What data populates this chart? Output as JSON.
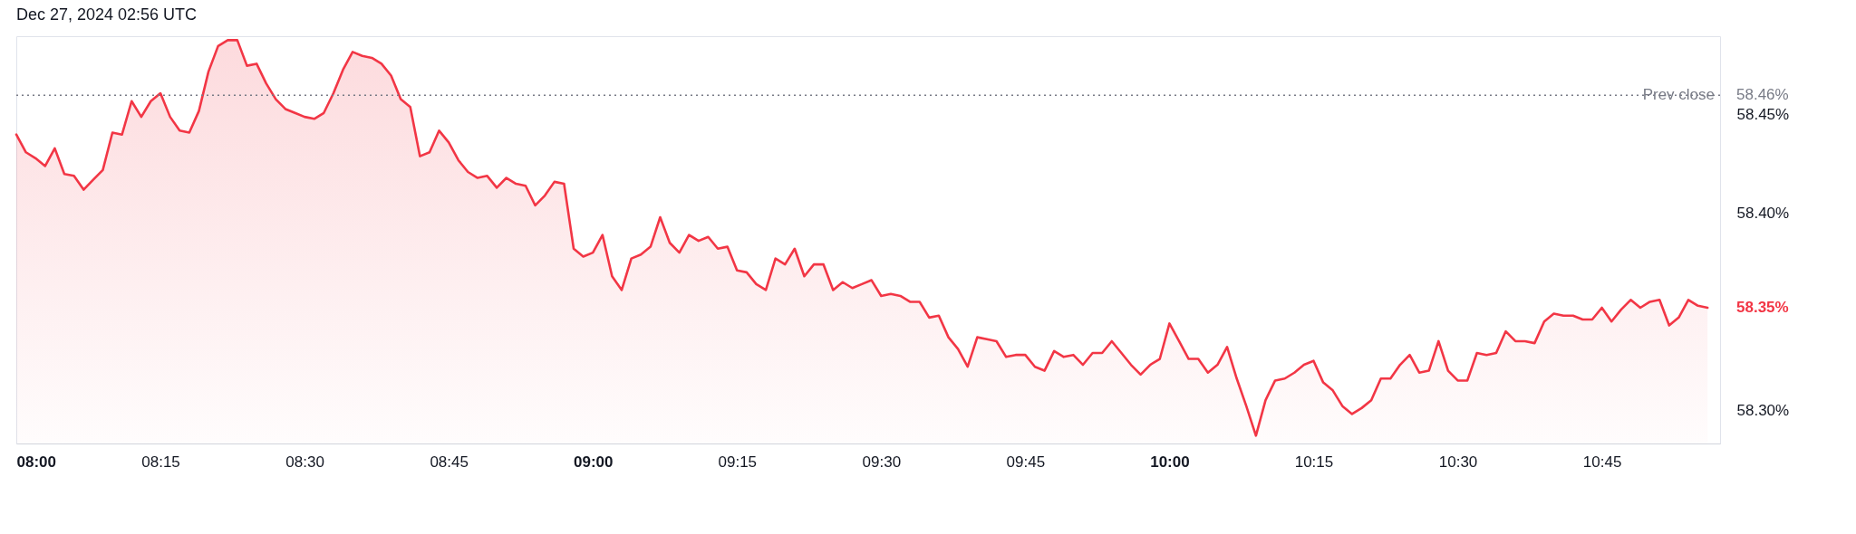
{
  "chart_data": {
    "type": "area",
    "title": "Dec 27, 2024 02:56 UTC",
    "x": [
      8,
      8.0167,
      8.0333,
      8.05,
      8.0667,
      8.0833,
      8.1,
      8.1167,
      8.1333,
      8.15,
      8.1667,
      8.1833,
      8.2,
      8.2167,
      8.2333,
      8.25,
      8.2667,
      8.2833,
      8.3,
      8.3167,
      8.3333,
      8.35,
      8.3667,
      8.3833,
      8.4,
      8.4167,
      8.4333,
      8.45,
      8.4667,
      8.4833,
      8.5,
      8.5167,
      8.5333,
      8.55,
      8.5667,
      8.5833,
      8.6,
      8.6167,
      8.6333,
      8.65,
      8.6667,
      8.6833,
      8.7,
      8.7167,
      8.7333,
      8.75,
      8.7667,
      8.7833,
      8.8,
      8.8167,
      8.8333,
      8.85,
      8.8667,
      8.8833,
      8.9,
      8.9167,
      8.9333,
      8.95,
      8.9667,
      8.9833,
      9,
      9.0167,
      9.0333,
      9.05,
      9.0667,
      9.0833,
      9.1,
      9.1167,
      9.1333,
      9.15,
      9.1667,
      9.1833,
      9.2,
      9.2167,
      9.2333,
      9.25,
      9.2667,
      9.2833,
      9.3,
      9.3167,
      9.3333,
      9.35,
      9.3667,
      9.3833,
      9.4,
      9.4167,
      9.4333,
      9.45,
      9.4667,
      9.4833,
      9.5,
      9.5167,
      9.5333,
      9.55,
      9.5667,
      9.5833,
      9.6,
      9.6167,
      9.6333,
      9.65,
      9.6667,
      9.6833,
      9.7,
      9.7167,
      9.7333,
      9.75,
      9.7667,
      9.7833,
      9.8,
      9.8167,
      9.8333,
      9.85,
      9.8667,
      9.8833,
      9.9,
      9.9167,
      9.9333,
      9.95,
      9.9667,
      9.9833,
      10,
      10.0167,
      10.0333,
      10.05,
      10.0667,
      10.0833,
      10.1,
      10.1167,
      10.1333,
      10.15,
      10.1667,
      10.1833,
      10.2,
      10.2167,
      10.2333,
      10.25,
      10.2667,
      10.2833,
      10.3,
      10.3167,
      10.3333,
      10.35,
      10.3667,
      10.3833,
      10.4,
      10.4167,
      10.4333,
      10.45,
      10.4667,
      10.4833,
      10.5,
      10.5167,
      10.5333,
      10.55,
      10.5667,
      10.5833,
      10.6,
      10.6167,
      10.6333,
      10.65,
      10.6667,
      10.6833,
      10.7,
      10.7167,
      10.7333,
      10.75,
      10.7667,
      10.7833,
      10.8,
      10.8167,
      10.8333,
      10.85,
      10.8667,
      10.8833,
      10.9,
      10.9167,
      10.9333
    ],
    "series": [
      {
        "color": "#f23645",
        "values": [
          58.44,
          58.431,
          58.428,
          58.424,
          58.433,
          58.42,
          58.419,
          58.412,
          58.417,
          58.422,
          58.441,
          58.44,
          58.457,
          58.449,
          58.457,
          58.461,
          58.449,
          58.442,
          58.441,
          58.452,
          58.472,
          58.485,
          58.488,
          58.488,
          58.475,
          58.476,
          58.466,
          58.458,
          58.453,
          58.451,
          58.449,
          58.448,
          58.451,
          58.461,
          58.473,
          58.482,
          58.48,
          58.479,
          58.476,
          58.47,
          58.458,
          58.454,
          58.429,
          58.431,
          58.442,
          58.436,
          58.427,
          58.421,
          58.418,
          58.419,
          58.413,
          58.418,
          58.415,
          58.414,
          58.404,
          58.409,
          58.416,
          58.415,
          58.382,
          58.378,
          58.38,
          58.389,
          58.368,
          58.361,
          58.377,
          58.379,
          58.383,
          58.398,
          58.385,
          58.38,
          58.389,
          58.386,
          58.388,
          58.382,
          58.383,
          58.371,
          58.37,
          58.364,
          58.361,
          58.377,
          58.374,
          58.382,
          58.368,
          58.374,
          58.374,
          58.361,
          58.365,
          58.362,
          58.364,
          58.366,
          58.358,
          58.359,
          58.358,
          58.355,
          58.355,
          58.347,
          58.348,
          58.337,
          58.331,
          58.322,
          58.337,
          58.336,
          58.335,
          58.327,
          58.328,
          58.328,
          58.322,
          58.32,
          58.33,
          58.327,
          58.328,
          58.323,
          58.329,
          58.329,
          58.335,
          58.329,
          58.323,
          58.318,
          58.323,
          58.326,
          58.344,
          58.335,
          58.326,
          58.326,
          58.319,
          58.323,
          58.332,
          58.316,
          58.302,
          58.287,
          58.305,
          58.315,
          58.316,
          58.319,
          58.323,
          58.325,
          58.314,
          58.31,
          58.302,
          58.298,
          58.301,
          58.305,
          58.316,
          58.316,
          58.323,
          58.328,
          58.319,
          58.32,
          58.335,
          58.32,
          58.315,
          58.315,
          58.329,
          58.328,
          58.329,
          58.34,
          58.335,
          58.335,
          58.334,
          58.345,
          58.349,
          58.348,
          58.348,
          58.346,
          58.346,
          58.352,
          58.345,
          58.351,
          58.356,
          58.352,
          58.355,
          58.356,
          58.343,
          58.347,
          58.356,
          58.353,
          58.352
        ]
      }
    ],
    "xlim": [
      8,
      10.955
    ],
    "xticks": [
      {
        "value": 8,
        "label": "08:00"
      },
      {
        "value": 8.25,
        "label": "08:15"
      },
      {
        "value": 8.5,
        "label": "08:30"
      },
      {
        "value": 8.75,
        "label": "08:45"
      },
      {
        "value": 9,
        "label": "09:00"
      },
      {
        "value": 9.25,
        "label": "09:15"
      },
      {
        "value": 9.5,
        "label": "09:30"
      },
      {
        "value": 9.75,
        "label": "09:45"
      },
      {
        "value": 10,
        "label": "10:00"
      },
      {
        "value": 10.25,
        "label": "10:15"
      },
      {
        "value": 10.5,
        "label": "10:30"
      },
      {
        "value": 10.75,
        "label": "10:45"
      }
    ],
    "ylim": [
      58.283,
      58.49
    ],
    "yticks": [
      {
        "value": 58.3,
        "label": "58.30%"
      },
      {
        "value": 58.4,
        "label": "58.40%"
      },
      {
        "value": 58.45,
        "label": "58.45%"
      }
    ],
    "ref_lines": [
      {
        "axis": "y",
        "value": 58.46,
        "label": "Prev close",
        "color": "#787b86",
        "line_style": "dotted"
      }
    ],
    "annotations": [
      "58.46%",
      "58.35%"
    ]
  }
}
